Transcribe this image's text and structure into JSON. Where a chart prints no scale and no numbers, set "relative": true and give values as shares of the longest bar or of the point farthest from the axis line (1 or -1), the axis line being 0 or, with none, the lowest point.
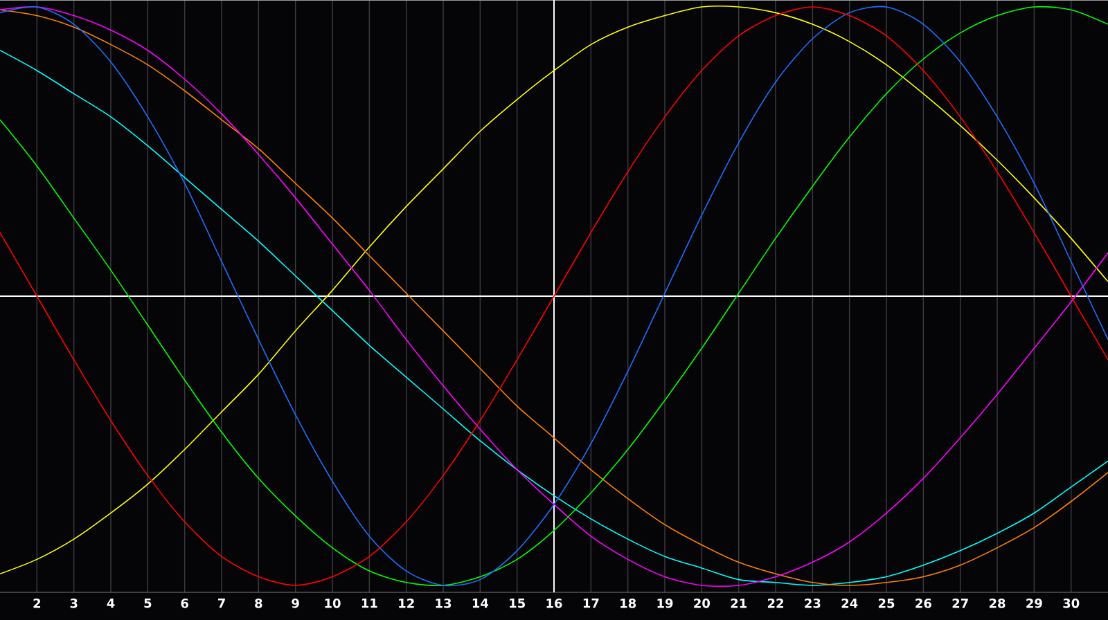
{
  "chart_data": {
    "type": "line",
    "relative": true,
    "grid": "x",
    "xlim": [
      1,
      31
    ],
    "xticks": [
      2,
      3,
      4,
      5,
      6,
      7,
      8,
      9,
      10,
      11,
      12,
      13,
      14,
      15,
      16,
      17,
      18,
      19,
      20,
      21,
      22,
      23,
      24,
      25,
      26,
      27,
      28,
      29,
      30
    ],
    "x": [
      1,
      2,
      3,
      4,
      5,
      6,
      7,
      8,
      9,
      10,
      11,
      12,
      13,
      14,
      15,
      16,
      17,
      18,
      19,
      20,
      21,
      22,
      23,
      24,
      25,
      26,
      27,
      28,
      29,
      30,
      31
    ],
    "ref_lines": [
      {
        "axis": "x",
        "value": 16,
        "color": "#ffffff"
      }
    ],
    "series": [
      {
        "color": "#ffff00",
        "values": [
          -0.96,
          -0.91,
          -0.84,
          -0.75,
          -0.65,
          -0.53,
          -0.4,
          -0.27,
          -0.12,
          0.02,
          0.17,
          0.31,
          0.44,
          0.57,
          0.68,
          0.78,
          0.87,
          0.93,
          0.97,
          1.0,
          1.0,
          0.98,
          0.94,
          0.88,
          0.8,
          0.7,
          0.59,
          0.47,
          0.34,
          0.2,
          0.05
        ]
      },
      {
        "color": "#00ffff",
        "values": [
          0.85,
          0.78,
          0.7,
          0.62,
          0.52,
          0.41,
          0.3,
          0.19,
          0.07,
          -0.05,
          -0.17,
          -0.28,
          -0.39,
          -0.5,
          -0.6,
          -0.69,
          -0.77,
          -0.84,
          -0.9,
          -0.94,
          -0.98,
          -0.99,
          -1.0,
          -0.99,
          -0.97,
          -0.93,
          -0.88,
          -0.82,
          -0.75,
          -0.66,
          -0.57
        ]
      },
      {
        "color": "#ff8000",
        "values": [
          0.99,
          0.97,
          0.93,
          0.87,
          0.8,
          0.71,
          0.61,
          0.51,
          0.39,
          0.27,
          0.14,
          0.01,
          -0.12,
          -0.25,
          -0.38,
          -0.49,
          -0.6,
          -0.7,
          -0.79,
          -0.86,
          -0.92,
          -0.96,
          -0.99,
          -1.0,
          -0.99,
          -0.97,
          -0.93,
          -0.87,
          -0.8,
          -0.71,
          -0.61
        ]
      },
      {
        "color": "#ff00ff",
        "values": [
          0.99,
          1.0,
          0.97,
          0.92,
          0.85,
          0.75,
          0.63,
          0.49,
          0.34,
          0.18,
          0.02,
          -0.15,
          -0.31,
          -0.46,
          -0.6,
          -0.72,
          -0.83,
          -0.91,
          -0.97,
          -1.0,
          -1.0,
          -0.97,
          -0.92,
          -0.85,
          -0.75,
          -0.63,
          -0.49,
          -0.34,
          -0.18,
          -0.02,
          0.15
        ]
      },
      {
        "color": "#00ff00",
        "values": [
          0.61,
          0.45,
          0.27,
          0.09,
          -0.1,
          -0.29,
          -0.47,
          -0.63,
          -0.76,
          -0.87,
          -0.95,
          -0.99,
          -1.0,
          -0.97,
          -0.91,
          -0.81,
          -0.68,
          -0.53,
          -0.36,
          -0.18,
          0.01,
          0.2,
          0.38,
          0.55,
          0.7,
          0.82,
          0.91,
          0.97,
          1.0,
          0.99,
          0.94
        ]
      },
      {
        "color": "#1e6eff",
        "values": [
          0.98,
          1.0,
          0.94,
          0.81,
          0.62,
          0.39,
          0.12,
          -0.15,
          -0.41,
          -0.64,
          -0.83,
          -0.95,
          -1.0,
          -0.98,
          -0.88,
          -0.72,
          -0.51,
          -0.26,
          0.01,
          0.28,
          0.53,
          0.74,
          0.89,
          0.98,
          1.0,
          0.94,
          0.81,
          0.62,
          0.39,
          0.12,
          -0.15
        ]
      },
      {
        "color": "#ff0000",
        "values": [
          0.22,
          0,
          -0.22,
          -0.43,
          -0.62,
          -0.78,
          -0.9,
          -0.97,
          -1,
          -0.97,
          -0.9,
          -0.78,
          -0.62,
          -0.43,
          -0.22,
          0,
          0.22,
          0.43,
          0.62,
          0.78,
          0.9,
          0.97,
          1,
          0.97,
          0.9,
          0.78,
          0.62,
          0.43,
          0.22,
          0,
          -0.22
        ]
      }
    ]
  }
}
